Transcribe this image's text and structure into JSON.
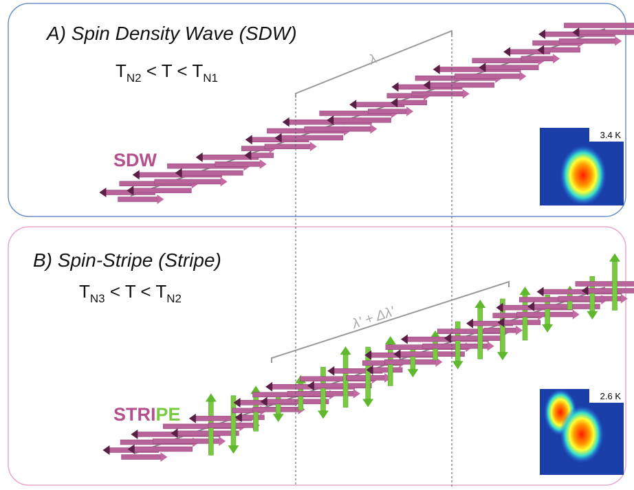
{
  "panel_a": {
    "title": "A)  Spin Density Wave (SDW)",
    "condition": [
      "T",
      "N2",
      " < T < T",
      "N1"
    ],
    "label": "SDW",
    "wavelength": "λ",
    "inset_label": "3.4 K"
  },
  "panel_b": {
    "title": "B) Spin-Stripe (Stripe)",
    "condition": [
      "T",
      "N3",
      " < T < T",
      "N2"
    ],
    "label_parts": [
      "STRI",
      "PE"
    ],
    "wavelength": "λ' + Δλ'",
    "inset_label": "2.6 K"
  }
}
